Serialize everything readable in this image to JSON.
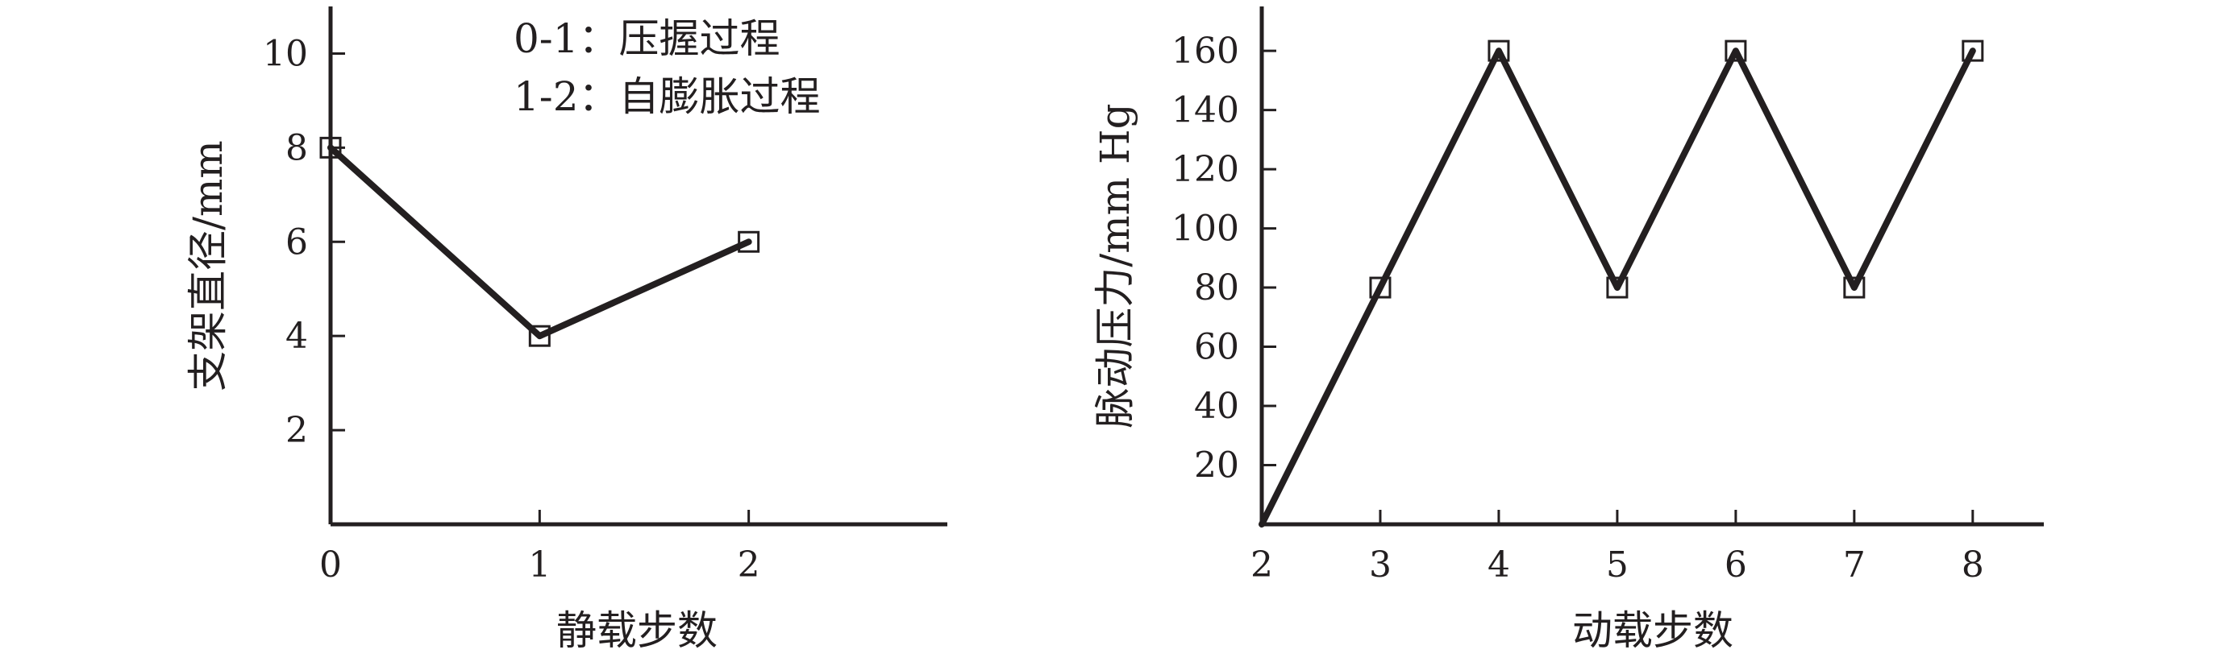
{
  "chart_data": [
    {
      "type": "line",
      "xlabel": "静载步数",
      "ylabel": "支架直径/mm",
      "x": [
        0,
        1,
        2
      ],
      "values": [
        8,
        4,
        6
      ],
      "xlim": [
        0,
        2.95
      ],
      "ylim": [
        0,
        11
      ],
      "xticks": [
        0,
        1,
        2
      ],
      "yticks": [
        2,
        4,
        6,
        8,
        10
      ],
      "marker": "open-square",
      "grid": false,
      "annotations": [
        "0-1：压握过程",
        "1-2：自膨胀过程"
      ],
      "color": "#231f20"
    },
    {
      "type": "line",
      "xlabel": "动载步数",
      "ylabel": "脉动压力/mm Hg",
      "x": [
        2,
        3,
        4,
        5,
        6,
        7,
        8
      ],
      "values": [
        0,
        80,
        160,
        80,
        160,
        80,
        160
      ],
      "xlim": [
        2,
        8.6
      ],
      "ylim": [
        0,
        175
      ],
      "xticks": [
        2,
        3,
        4,
        5,
        6,
        7,
        8
      ],
      "yticks": [
        20,
        40,
        60,
        80,
        100,
        120,
        140,
        160
      ],
      "marker": "open-square",
      "grid": false,
      "color": "#231f20"
    }
  ]
}
